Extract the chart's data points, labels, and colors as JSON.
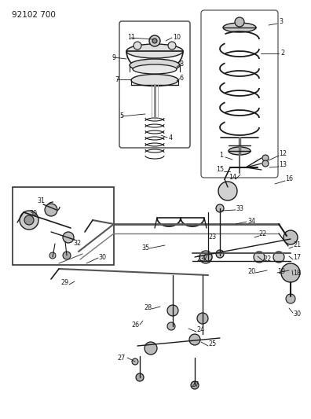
{
  "diagram_number": "92102 700",
  "bg_color": "#ffffff",
  "lc": "#1a1a1a",
  "fig_width": 3.96,
  "fig_height": 5.33,
  "dpi": 100,
  "label_fs": 5.8,
  "title_fs": 7.5
}
